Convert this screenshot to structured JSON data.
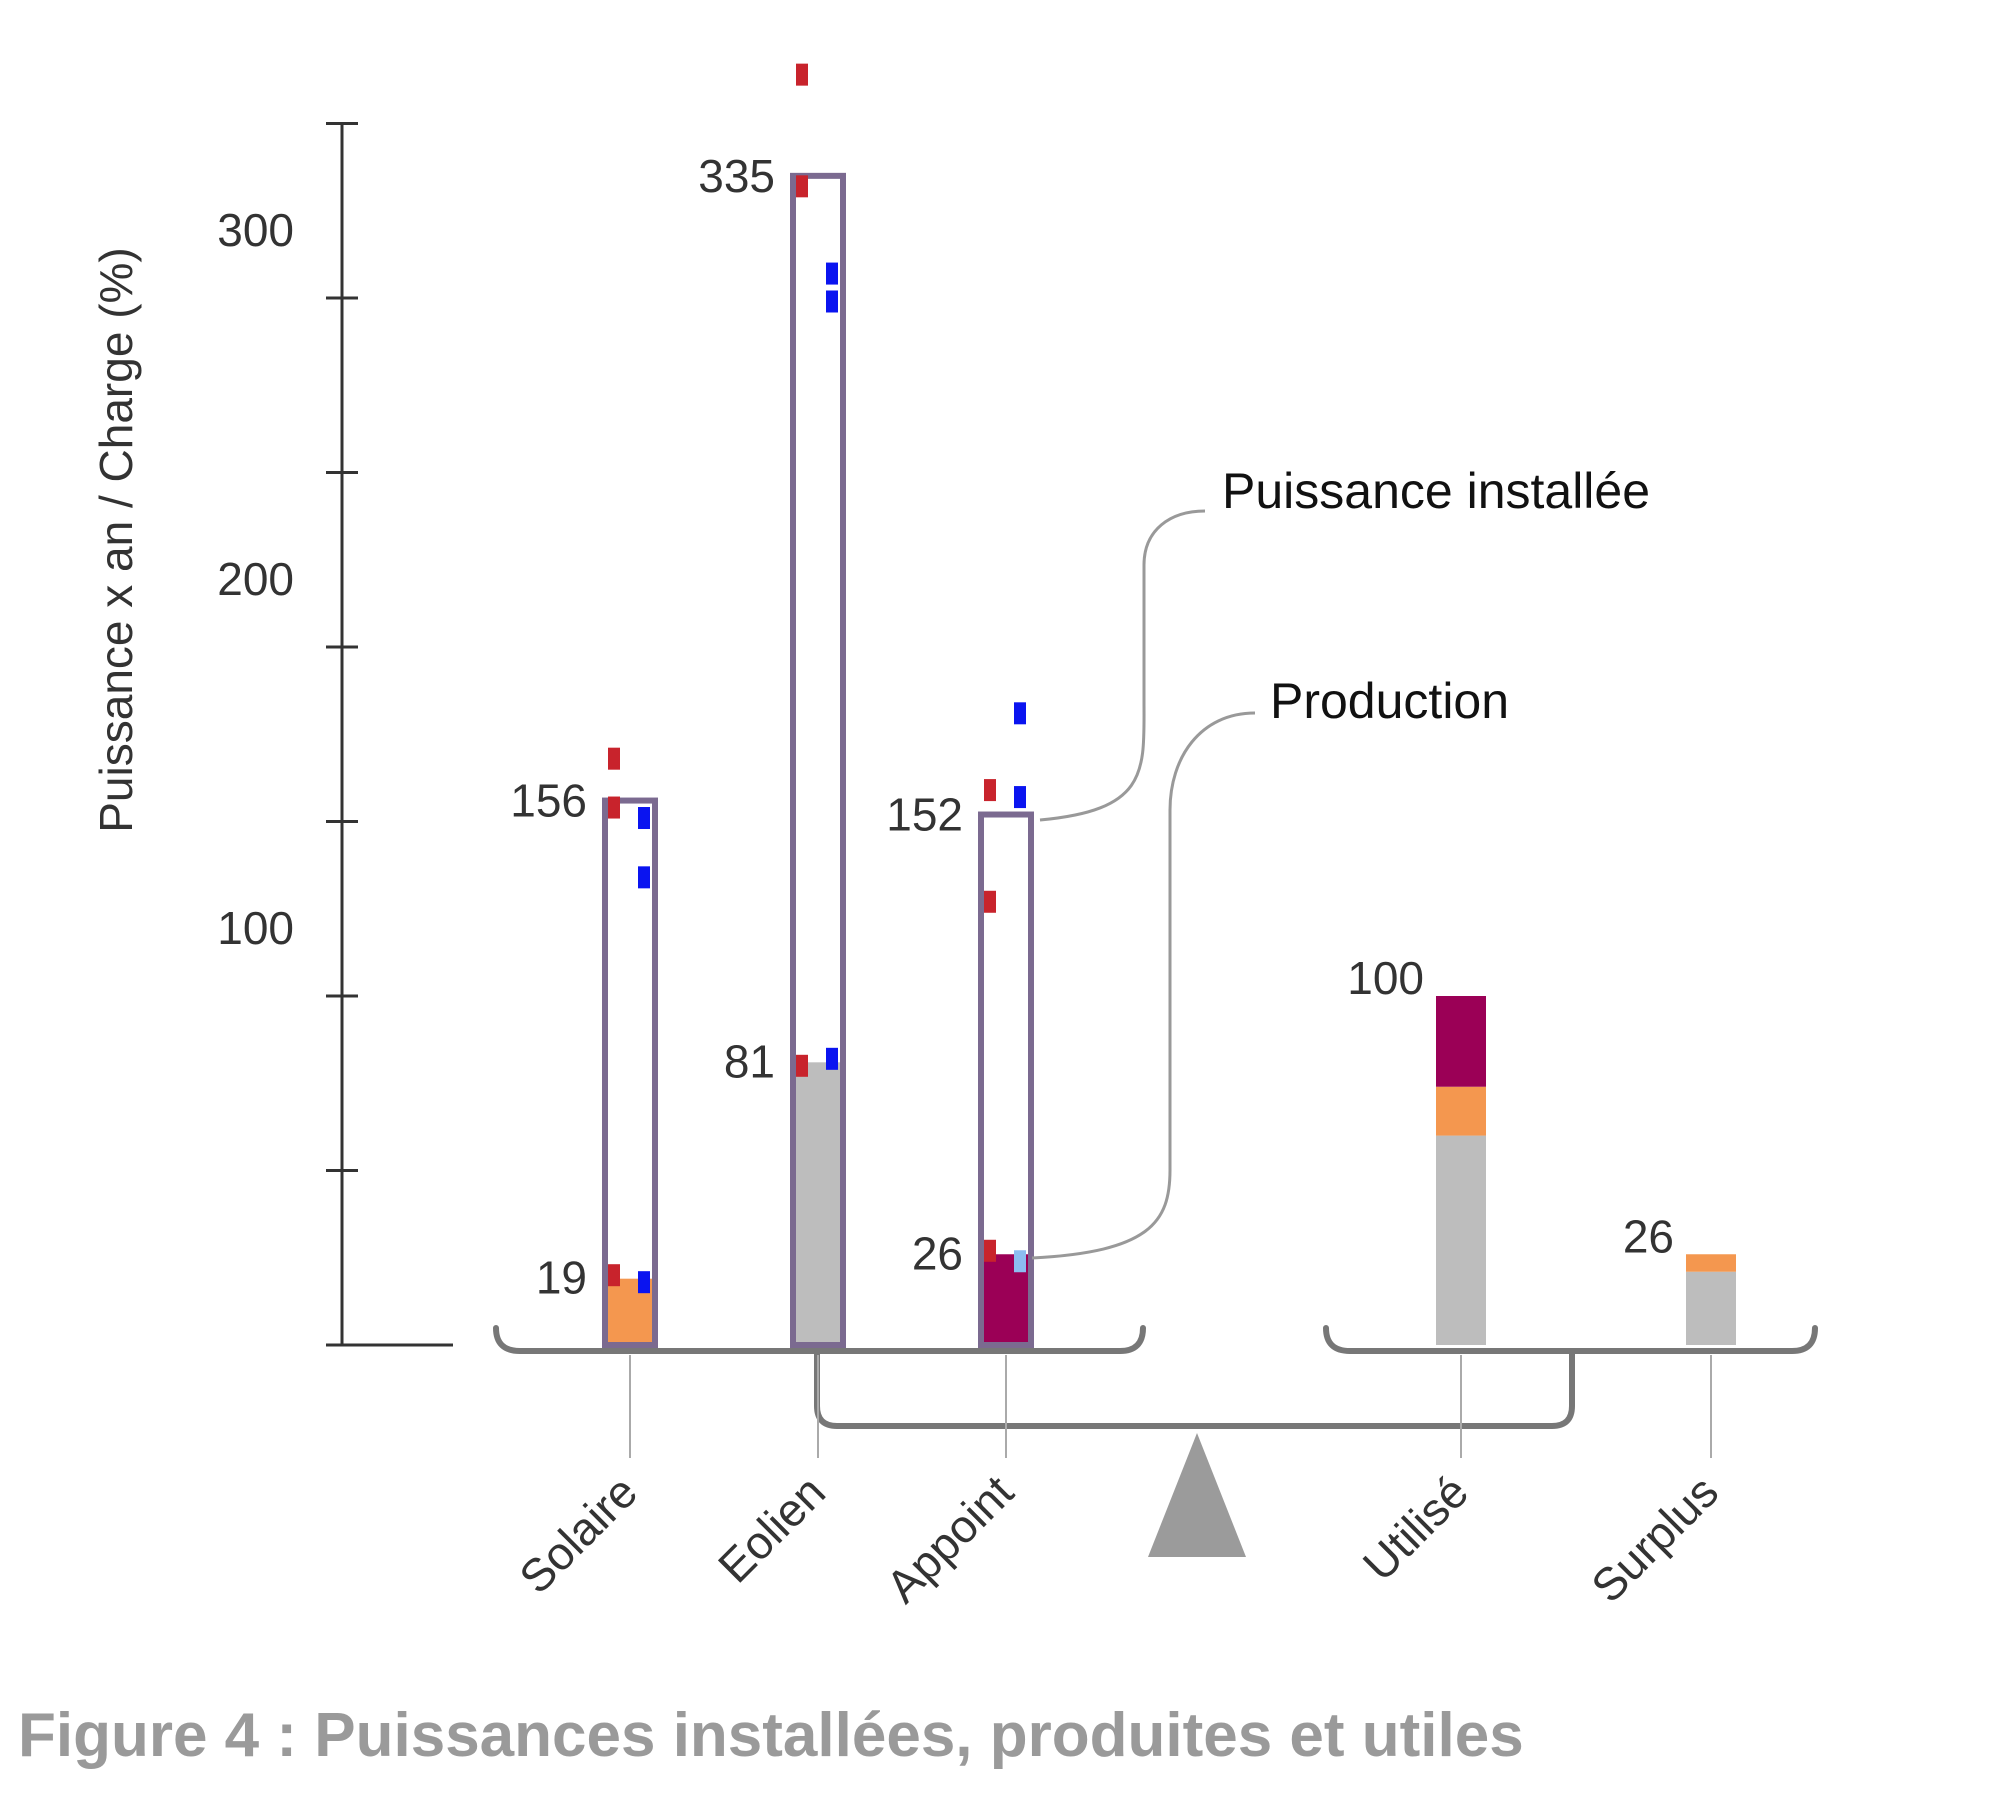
{
  "caption": "Figure 4 : Puissances installées, produites et utiles",
  "chart_data": {
    "type": "bar",
    "ylabel": "Puissance x an / Charge (%)",
    "ylim": [
      0,
      350
    ],
    "yticks": [
      0,
      50,
      100,
      150,
      200,
      250,
      300,
      350
    ],
    "ytick_labels": [
      "100",
      "200",
      "300"
    ],
    "ytick_labeled_values": [
      100,
      200,
      300
    ],
    "categories": [
      "Solaire",
      "Eolien",
      "Appoint",
      "Utilisé",
      "Surplus"
    ],
    "installed": {
      "name": "Puissance installée",
      "values": [
        156,
        335,
        152,
        null,
        null
      ],
      "color": "#7b6a90"
    },
    "production": {
      "name": "Production",
      "values": [
        19,
        81,
        26,
        100,
        26
      ]
    },
    "value_labels": {
      "installed": [
        "156",
        "335",
        "152",
        "",
        ""
      ],
      "production": [
        "19",
        "81",
        "26",
        "100",
        "26"
      ]
    },
    "stacks": [
      {
        "category": "Solaire",
        "segments": [
          {
            "source": "Solaire",
            "value": 19,
            "color": "#f4974f"
          }
        ]
      },
      {
        "category": "Eolien",
        "segments": [
          {
            "source": "Eolien",
            "value": 81,
            "color": "#bdbdbd"
          }
        ]
      },
      {
        "category": "Appoint",
        "segments": [
          {
            "source": "Appoint",
            "value": 26,
            "color": "#9b0056"
          }
        ]
      },
      {
        "category": "Utilisé",
        "segments": [
          {
            "source": "Eolien",
            "value": 60,
            "color": "#bdbdbd"
          },
          {
            "source": "Solaire",
            "value": 14,
            "color": "#f4974f"
          },
          {
            "source": "Appoint",
            "value": 26,
            "color": "#9b0056"
          }
        ]
      },
      {
        "category": "Surplus",
        "segments": [
          {
            "source": "Eolien",
            "value": 21,
            "color": "#bdbdbd"
          },
          {
            "source": "Solaire",
            "value": 5,
            "color": "#f4974f"
          }
        ]
      }
    ],
    "markers": {
      "red": {
        "color": "#c8232c",
        "points": [
          {
            "category": "Solaire",
            "y": 168
          },
          {
            "category": "Solaire",
            "y": 154
          },
          {
            "category": "Solaire",
            "y": 20
          },
          {
            "category": "Eolien",
            "y": 364
          },
          {
            "category": "Eolien",
            "y": 332
          },
          {
            "category": "Eolien",
            "y": 80
          },
          {
            "category": "Appoint",
            "y": 159
          },
          {
            "category": "Appoint",
            "y": 127
          },
          {
            "category": "Appoint",
            "y": 27
          }
        ]
      },
      "blue": {
        "color": "#0a14f0",
        "points": [
          {
            "category": "Solaire",
            "y": 151
          },
          {
            "category": "Solaire",
            "y": 134
          },
          {
            "category": "Solaire",
            "y": 18
          },
          {
            "category": "Eolien",
            "y": 307
          },
          {
            "category": "Eolien",
            "y": 299
          },
          {
            "category": "Eolien",
            "y": 82
          },
          {
            "category": "Appoint",
            "y": 181
          },
          {
            "category": "Appoint",
            "y": 157
          }
        ]
      },
      "lightblue": {
        "color": "#8cbdf0",
        "points": [
          {
            "category": "Appoint",
            "y": 24
          }
        ]
      }
    },
    "grid": false,
    "legend": "callout-right"
  }
}
